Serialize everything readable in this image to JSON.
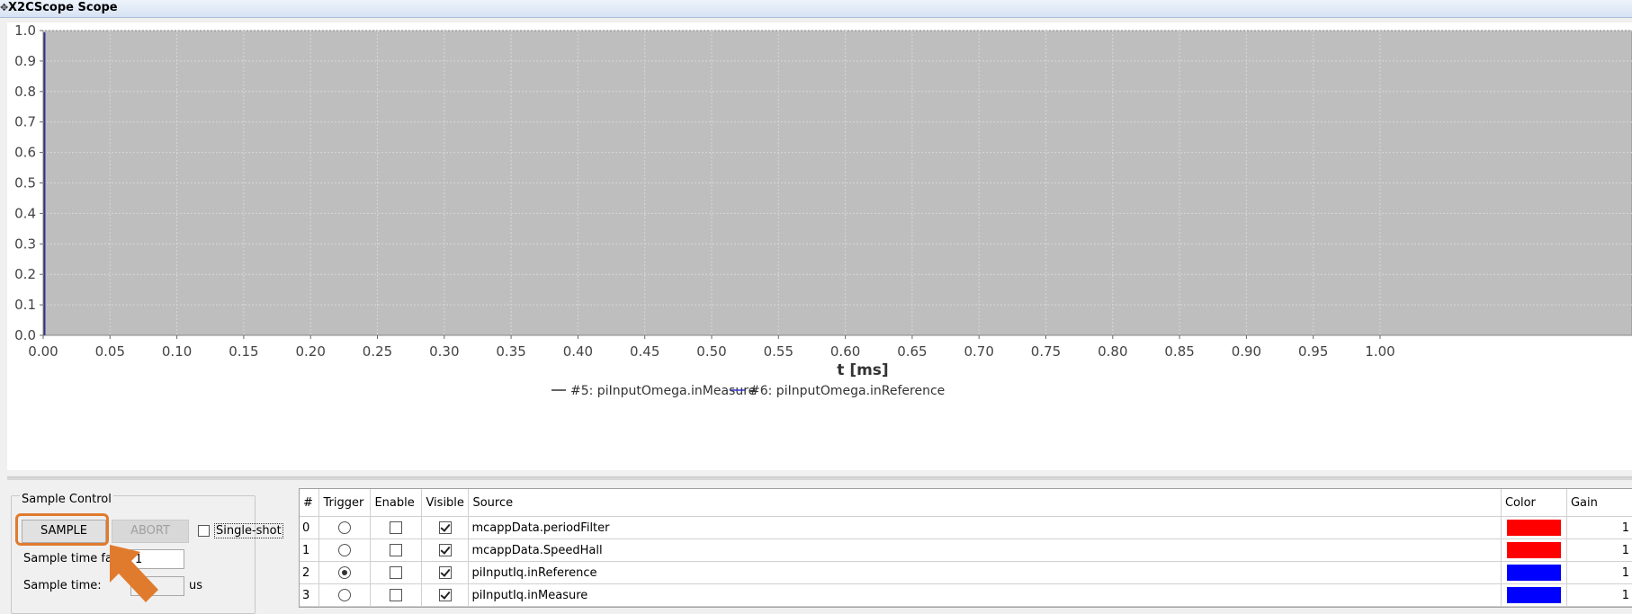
{
  "window": {
    "title": "X2CScope Scope",
    "title_icon": "move-icon"
  },
  "chart_data": {
    "type": "line",
    "title": "",
    "xlabel": "t [ms]",
    "ylabel": "",
    "xlim": [
      0.0,
      1.0
    ],
    "ylim": [
      0.0,
      1.0
    ],
    "x_ticks": [
      "0.00",
      "0.05",
      "0.10",
      "0.15",
      "0.20",
      "0.25",
      "0.30",
      "0.35",
      "0.40",
      "0.45",
      "0.50",
      "0.55",
      "0.60",
      "0.65",
      "0.70",
      "0.75",
      "0.80",
      "0.85",
      "0.90",
      "0.95",
      "1.00"
    ],
    "y_ticks": [
      "0.0",
      "0.1",
      "0.2",
      "0.3",
      "0.4",
      "0.5",
      "0.6",
      "0.7",
      "0.8",
      "0.9",
      "1.0"
    ],
    "grid": true,
    "legend_position": "bottom",
    "plot_background": "#bebebe",
    "series": [
      {
        "name": "#5: piInputOmega.inMeasure",
        "color": "#333333",
        "x": [],
        "y": []
      },
      {
        "name": "#6: piInputOmega.inReference",
        "color": "#3333cc",
        "x": [],
        "y": []
      }
    ]
  },
  "sample_control": {
    "title": "Sample Control",
    "sample_label": "SAMPLE",
    "abort_label": "ABORT",
    "single_shot_label": "Single-shot",
    "single_shot_checked": false,
    "factor_label": "Sample time fac",
    "factor_value": "1",
    "time_label": "Sample time:",
    "time_value": "",
    "time_unit": "us"
  },
  "channels": {
    "headers": {
      "num": "#",
      "trigger": "Trigger",
      "enable": "Enable",
      "visible": "Visible",
      "source": "Source",
      "color": "Color",
      "gain": "Gain"
    },
    "rows": [
      {
        "num": "0",
        "trigger": false,
        "enable": false,
        "visible": true,
        "source": "mcappData.periodFilter",
        "color": "#ff0000",
        "gain": "1"
      },
      {
        "num": "1",
        "trigger": false,
        "enable": false,
        "visible": true,
        "source": "mcappData.SpeedHall",
        "color": "#ff0000",
        "gain": "1"
      },
      {
        "num": "2",
        "trigger": true,
        "enable": false,
        "visible": true,
        "source": "piInputIq.inReference",
        "color": "#0000ff",
        "gain": "1"
      },
      {
        "num": "3",
        "trigger": false,
        "enable": false,
        "visible": true,
        "source": "piInputIq.inMeasure",
        "color": "#0000ff",
        "gain": "1"
      }
    ]
  }
}
